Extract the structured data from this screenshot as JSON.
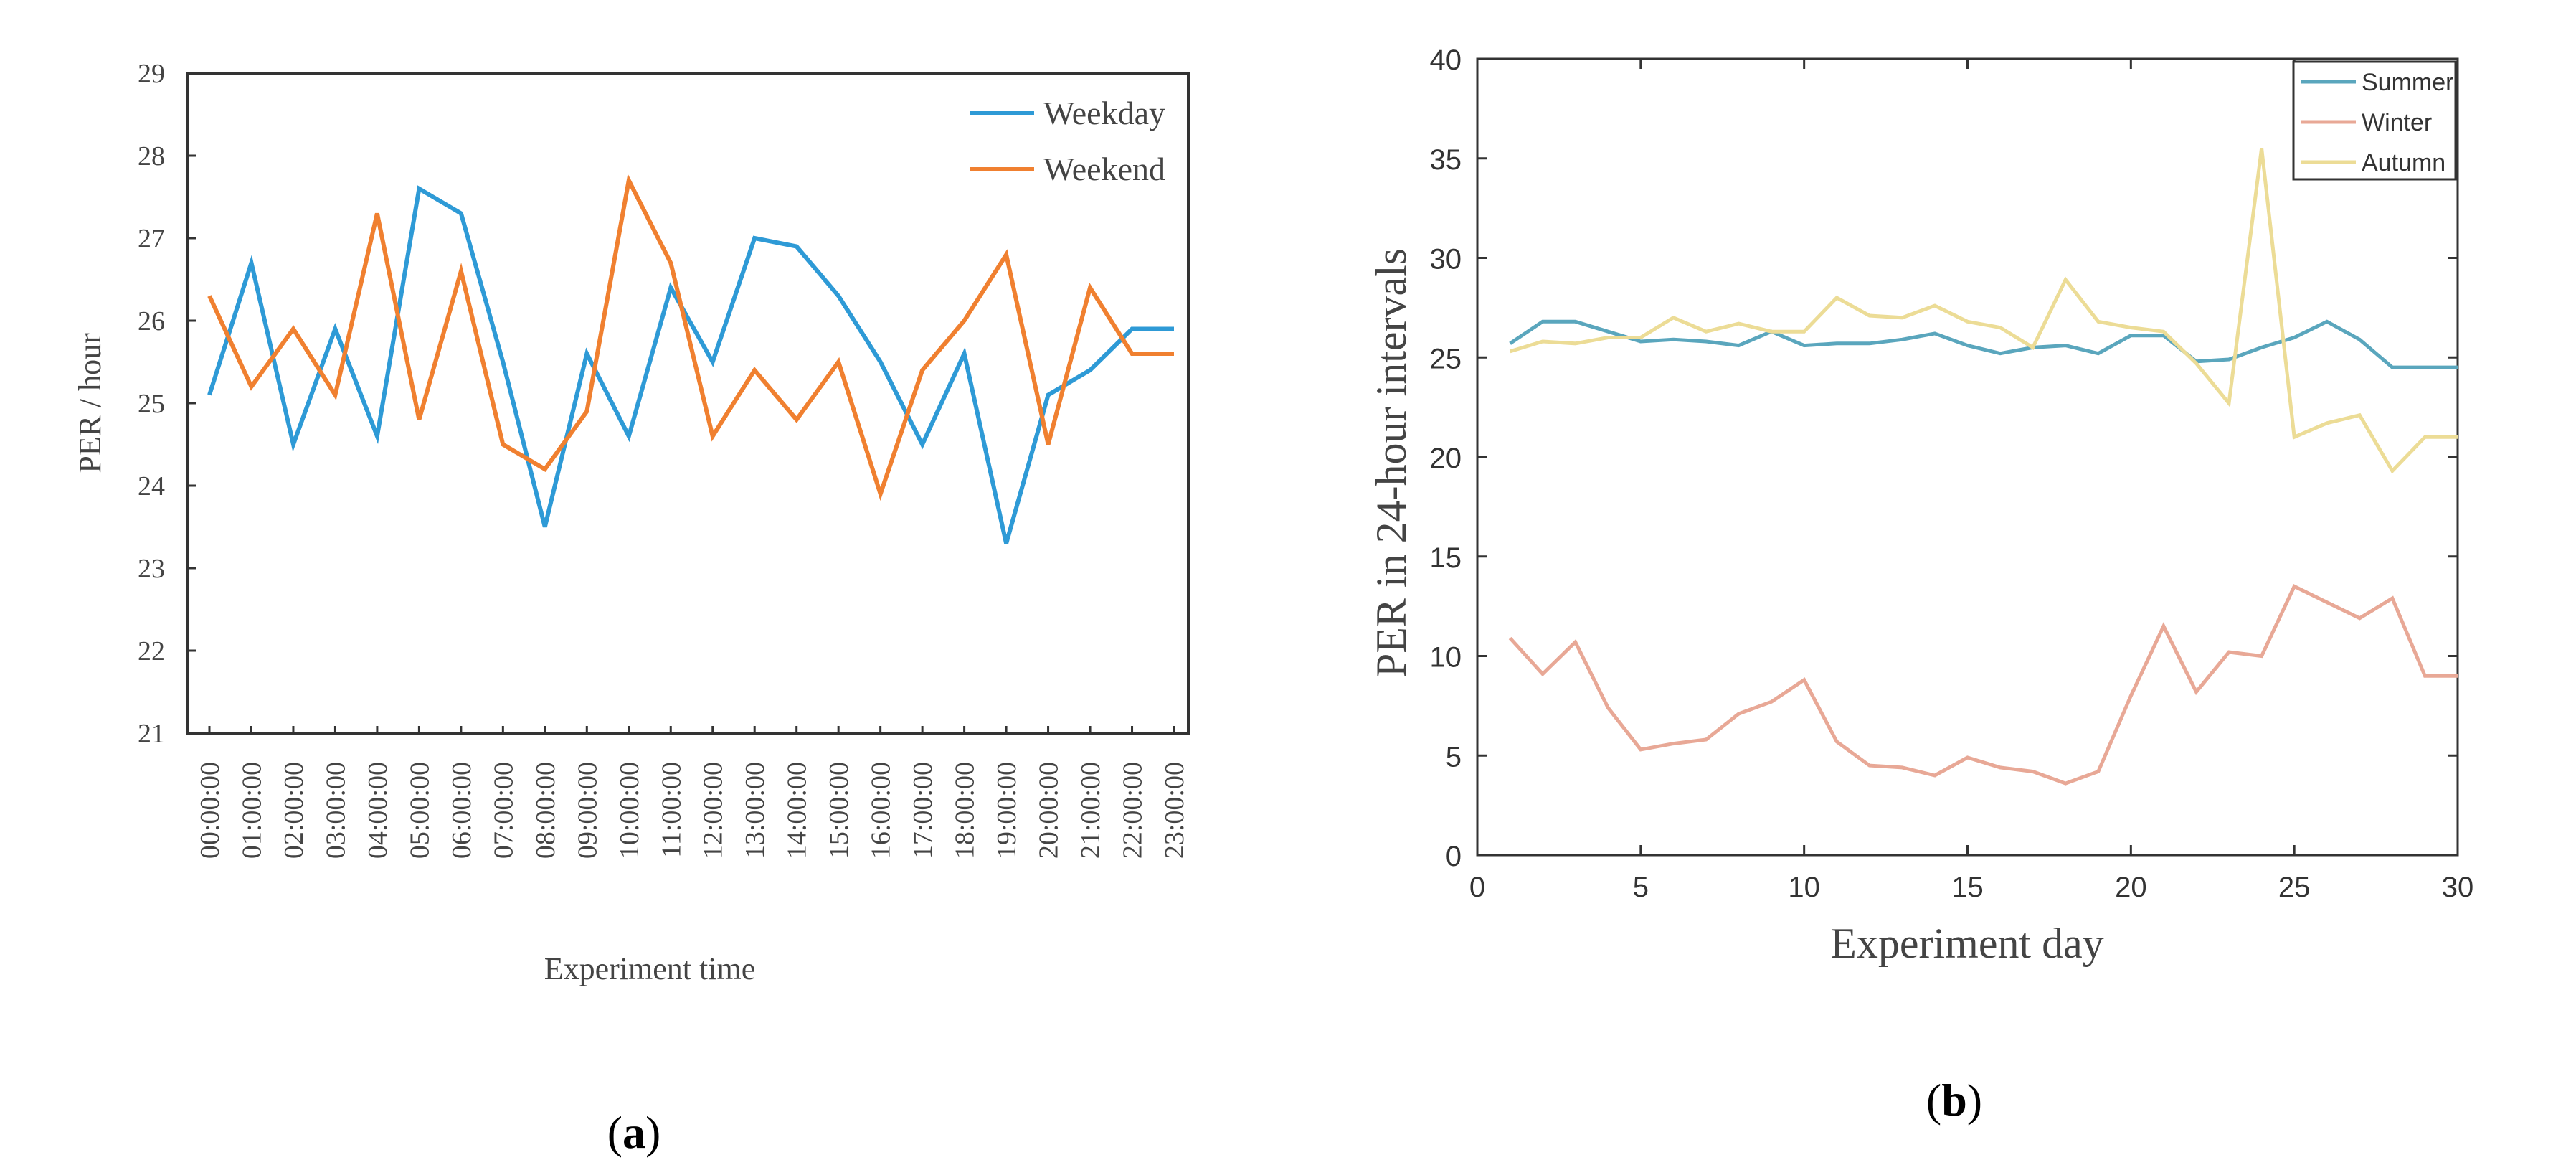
{
  "chart_data": [
    {
      "panel_label": "a",
      "type": "line",
      "title": "",
      "xlabel": "Experiment time",
      "ylabel": "PER / hour",
      "ylim": [
        21,
        29
      ],
      "yticks": [
        21,
        22,
        23,
        24,
        25,
        26,
        27,
        28,
        29
      ],
      "grid": false,
      "legend": "top-right",
      "categories": [
        "00:00:00",
        "01:00:00",
        "02:00:00",
        "03:00:00",
        "04:00:00",
        "05:00:00",
        "06:00:00",
        "07:00:00",
        "08:00:00",
        "09:00:00",
        "10:00:00",
        "11:00:00",
        "12:00:00",
        "13:00:00",
        "14:00:00",
        "15:00:00",
        "16:00:00",
        "17:00:00",
        "18:00:00",
        "19:00:00",
        "20:00:00",
        "21:00:00",
        "22:00:00",
        "23:00:00"
      ],
      "series": [
        {
          "name": "Weekday",
          "color": "#2e9ad6",
          "values": [
            25.1,
            26.7,
            24.5,
            25.9,
            24.6,
            27.6,
            27.3,
            25.5,
            23.5,
            25.6,
            24.6,
            26.4,
            25.5,
            27.0,
            26.9,
            26.3,
            25.5,
            24.5,
            25.6,
            23.3,
            25.1,
            25.4,
            25.9,
            25.9
          ]
        },
        {
          "name": "Weekend",
          "color": "#f08030",
          "values": [
            26.3,
            25.2,
            25.9,
            25.1,
            27.3,
            24.8,
            26.6,
            24.5,
            24.2,
            24.9,
            27.7,
            26.7,
            24.6,
            25.4,
            24.8,
            25.5,
            23.9,
            25.4,
            26.0,
            26.8,
            24.5,
            26.4,
            25.6,
            25.6
          ]
        }
      ]
    },
    {
      "panel_label": "b",
      "type": "line",
      "title": "",
      "xlabel": "Experiment day",
      "ylabel": "PER in 24-hour intervals",
      "xlim": [
        0,
        30
      ],
      "ylim": [
        0,
        40
      ],
      "xticks": [
        0,
        5,
        10,
        15,
        20,
        25,
        30
      ],
      "yticks": [
        0,
        5,
        10,
        15,
        20,
        25,
        30,
        35,
        40
      ],
      "grid": false,
      "legend": "top-right",
      "x": [
        1,
        2,
        3,
        4,
        5,
        6,
        7,
        8,
        9,
        10,
        11,
        12,
        13,
        14,
        15,
        16,
        17,
        18,
        19,
        20,
        21,
        22,
        23,
        24,
        25,
        26,
        27,
        28,
        29,
        30
      ],
      "series": [
        {
          "name": "Summer",
          "color": "#5aa6bd",
          "values": [
            25.7,
            26.8,
            26.8,
            26.3,
            25.8,
            25.9,
            25.8,
            25.6,
            26.3,
            25.6,
            25.7,
            25.7,
            25.9,
            26.2,
            25.6,
            25.2,
            25.5,
            25.6,
            25.2,
            26.1,
            26.1,
            24.8,
            24.9,
            25.5,
            26.0,
            26.8,
            25.9,
            24.5,
            24.5,
            24.5
          ]
        },
        {
          "name": "Winter",
          "color": "#e8a896",
          "values": [
            10.9,
            9.1,
            10.7,
            7.4,
            5.3,
            5.6,
            5.8,
            7.1,
            7.7,
            8.8,
            5.7,
            4.5,
            4.4,
            4.0,
            4.9,
            4.4,
            4.2,
            3.6,
            4.2,
            8.0,
            11.5,
            8.2,
            10.2,
            10.0,
            13.5,
            12.7,
            11.9,
            12.9,
            9.0,
            9.0
          ]
        },
        {
          "name": "Autumn",
          "color": "#ecdc96",
          "values": [
            25.3,
            25.8,
            25.7,
            26.0,
            26.0,
            27.0,
            26.3,
            26.7,
            26.3,
            26.3,
            28.0,
            27.1,
            27.0,
            27.6,
            26.8,
            26.5,
            25.5,
            28.9,
            26.8,
            26.5,
            26.3,
            24.7,
            22.7,
            35.5,
            21.0,
            21.7,
            22.1,
            19.3,
            21.0,
            21.0
          ]
        }
      ]
    }
  ]
}
